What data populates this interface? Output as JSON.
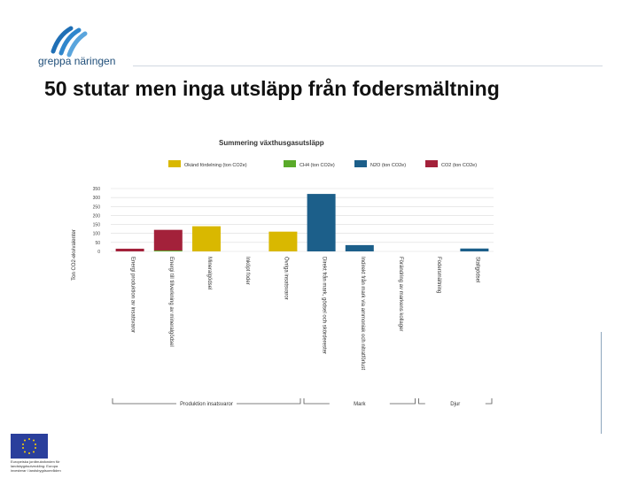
{
  "brand": {
    "name": "greppa näringen",
    "eu_caption": "Europeiska jordbruksfonden för landsbygdsutveckling: Europa investerar i landsbygdsområden"
  },
  "slide": {
    "title": "50 stutar men inga utsläpp från fodersmältning"
  },
  "colors": {
    "okand": "#d9b800",
    "ch4": "#5aaa2a",
    "n2o": "#1c5f8a",
    "co2": "#a3213a"
  },
  "chart_data": {
    "type": "bar",
    "title": "Summering växthusgasutsläpp",
    "ylabel": "Ton CO2-ekvivalenter",
    "ylim": [
      0,
      350
    ],
    "yticks": [
      "0",
      "50",
      "100",
      "150",
      "200",
      "250",
      "300",
      "350"
    ],
    "legend": [
      "Okänd fördelning (ton CO2e)",
      "CH4 (ton CO2e)",
      "N2O (ton CO2e)",
      "CO2 (ton CO2e)"
    ],
    "categories": [
      "Energi produktion av insatsvaror",
      "Energi till tillverkning av mineralgödsel",
      "Mineralgödsel",
      "Inköpt foder",
      "Övriga insatsvaror",
      "Direkt från mark, gödsel och skörderester",
      "Indirekt från mark via ammoniak och nitratförlust",
      "Förändring av markens kollager",
      "Fodersmältning",
      "Stallgödsel"
    ],
    "series": [
      {
        "name": "Okänd fördelning",
        "values": [
          0,
          0,
          140,
          0,
          110,
          0,
          0,
          0,
          0,
          0
        ]
      },
      {
        "name": "CH4",
        "values": [
          0,
          5,
          0,
          0,
          0,
          0,
          0,
          0,
          0,
          0
        ]
      },
      {
        "name": "N2O",
        "values": [
          0,
          0,
          0,
          0,
          0,
          320,
          35,
          0,
          0,
          16
        ]
      },
      {
        "name": "CO2",
        "values": [
          15,
          115,
          0,
          0,
          0,
          0,
          0,
          0,
          0,
          0
        ]
      }
    ],
    "groups": [
      {
        "label": "Produktion insatsvaror",
        "from": 0,
        "to": 4
      },
      {
        "label": "Mark",
        "from": 5,
        "to": 7
      },
      {
        "label": "Djur",
        "from": 8,
        "to": 9
      }
    ]
  }
}
